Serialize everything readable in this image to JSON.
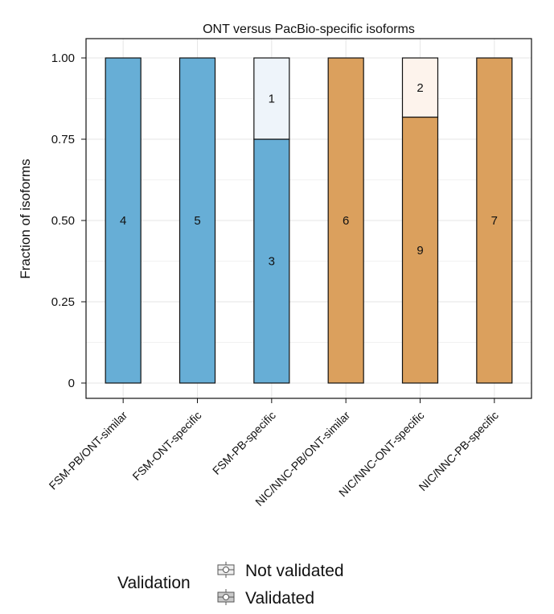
{
  "chart_data": {
    "type": "bar",
    "stacked": true,
    "title": "ONT versus PacBio-specific isoforms",
    "xlabel": "",
    "ylabel": "Fraction of isoforms",
    "ylim": [
      0,
      1
    ],
    "yticks": [
      0,
      0.25,
      0.5,
      0.75,
      1.0
    ],
    "ytick_labels": [
      "0",
      "0.25",
      "0.50",
      "0.75",
      "1.00"
    ],
    "grid": true,
    "categories": [
      "FSM-PB/ONT-similar",
      "FSM-ONT-specific",
      "FSM-PB-specific",
      "NIC/NNC-PB/ONT-similar",
      "NIC/NNC-ONT-specific",
      "NIC/NNC-PB-specific"
    ],
    "category_group_colors": [
      "#67aed6",
      "#67aed6",
      "#67aed6",
      "#dba05d",
      "#dba05d",
      "#dba05d"
    ],
    "light_colors": [
      "#eef4fa",
      "#eef4fa",
      "#eef4fa",
      "#fdf3ec",
      "#fdf3ec",
      "#fdf3ec"
    ],
    "series": [
      {
        "name": "Validated",
        "values": [
          1.0,
          1.0,
          0.75,
          1.0,
          0.818,
          1.0
        ],
        "labels": [
          "4",
          "5",
          "3",
          "6",
          "9",
          "7"
        ]
      },
      {
        "name": "Not validated",
        "values": [
          0,
          0,
          0.25,
          0,
          0.182,
          0
        ],
        "labels": [
          "",
          "",
          "1",
          "",
          "2",
          ""
        ]
      }
    ],
    "legend": {
      "title": "Validation",
      "entries": [
        "Not validated",
        "Validated"
      ],
      "position": "bottom"
    }
  }
}
